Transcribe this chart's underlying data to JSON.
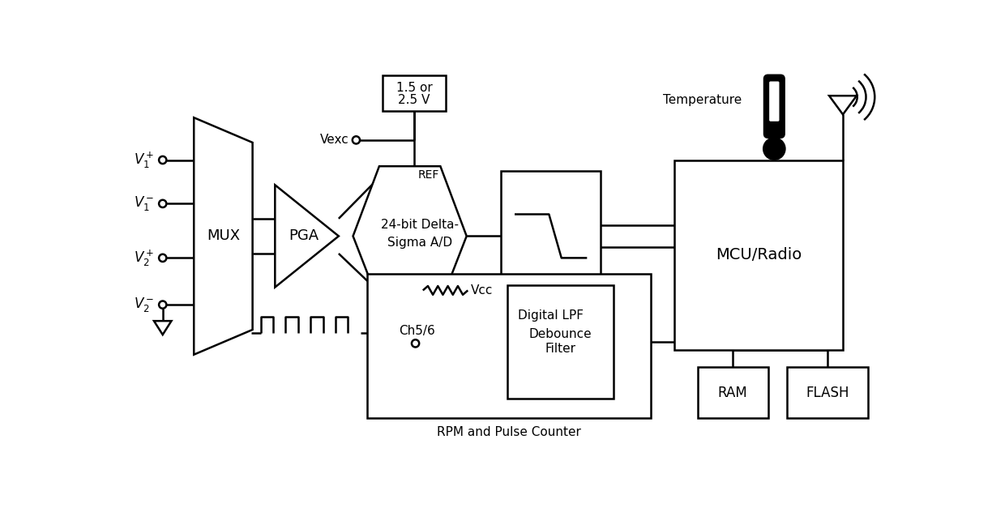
{
  "bg": "#ffffff",
  "fg": "#000000",
  "lw": 1.8,
  "fw": 12.24,
  "fh": 6.32,
  "dpi": 100,
  "pin_labels": [
    "$V_1^+$",
    "$V_1^-$",
    "$V_2^+$",
    "$V_2^-$"
  ],
  "mux_label": "MUX",
  "pga_label": "PGA",
  "adc_label1": "24-bit Delta-",
  "adc_label2": "Sigma A/D",
  "ref_label1": "1.5 or",
  "ref_label2": "2.5 V",
  "ref_tag": "REF",
  "vexc_label": "Vexc",
  "lpf_label": "Digital LPF",
  "mcu_label": "MCU/Radio",
  "ram_label": "RAM",
  "flash_label": "FLASH",
  "temp_label": "Temperature",
  "ch_label": "Ch5/6",
  "vcc_label": "Vcc",
  "dbf_label1": "Debounce",
  "dbf_label2": "Filter",
  "rpm_label": "RPM and Pulse Counter"
}
